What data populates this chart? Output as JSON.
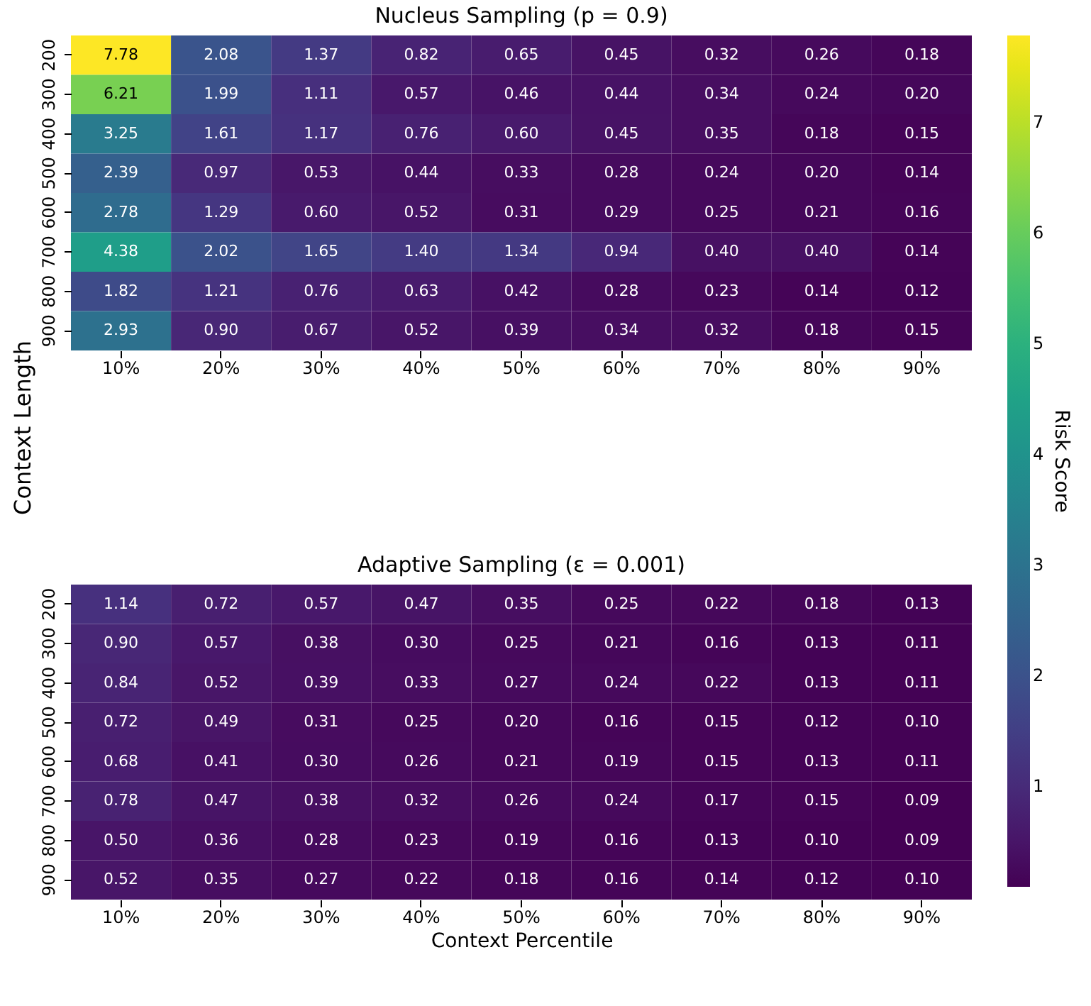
{
  "chart_data": [
    {
      "type": "heatmap",
      "title": "Nucleus Sampling (p = 0.9)",
      "ylabel": "Context Length",
      "clabel": "Risk Score",
      "clim": [
        0.09,
        7.78
      ],
      "cticks": [
        1,
        2,
        3,
        4,
        5,
        6,
        7
      ],
      "data_labels": true,
      "categories": [
        "10%",
        "20%",
        "30%",
        "40%",
        "50%",
        "60%",
        "70%",
        "80%",
        "90%"
      ],
      "y_categories": [
        "200",
        "300",
        "400",
        "500",
        "600",
        "700",
        "800",
        "900"
      ],
      "cells": [
        [
          7.78,
          2.08,
          1.37,
          0.82,
          0.65,
          0.45,
          0.32,
          0.26,
          0.18
        ],
        [
          6.21,
          1.99,
          1.11,
          0.57,
          0.46,
          0.44,
          0.34,
          0.24,
          0.2
        ],
        [
          3.25,
          1.61,
          1.17,
          0.76,
          0.6,
          0.45,
          0.35,
          0.18,
          0.15
        ],
        [
          2.39,
          0.97,
          0.53,
          0.44,
          0.33,
          0.28,
          0.24,
          0.2,
          0.14
        ],
        [
          2.78,
          1.29,
          0.6,
          0.52,
          0.31,
          0.29,
          0.25,
          0.21,
          0.16
        ],
        [
          4.38,
          2.02,
          1.65,
          1.4,
          1.34,
          0.94,
          0.4,
          0.4,
          0.14
        ],
        [
          1.82,
          1.21,
          0.76,
          0.63,
          0.42,
          0.28,
          0.23,
          0.14,
          0.12
        ],
        [
          2.93,
          0.9,
          0.67,
          0.52,
          0.39,
          0.34,
          0.32,
          0.18,
          0.15
        ]
      ],
      "cell_labels": [
        [
          "7.78",
          "2.08",
          "1.37",
          "0.82",
          "0.65",
          "0.45",
          "0.32",
          "0.26",
          "0.18"
        ],
        [
          "6.21",
          "1.99",
          "1.11",
          "0.57",
          "0.46",
          "0.44",
          "0.34",
          "0.24",
          "0.20"
        ],
        [
          "3.25",
          "1.61",
          "1.17",
          "0.76",
          "0.60",
          "0.45",
          "0.35",
          "0.18",
          "0.15"
        ],
        [
          "2.39",
          "0.97",
          "0.53",
          "0.44",
          "0.33",
          "0.28",
          "0.24",
          "0.20",
          "0.14"
        ],
        [
          "2.78",
          "1.29",
          "0.60",
          "0.52",
          "0.31",
          "0.29",
          "0.25",
          "0.21",
          "0.16"
        ],
        [
          "4.38",
          "2.02",
          "1.65",
          "1.40",
          "1.34",
          "0.94",
          "0.40",
          "0.40",
          "0.14"
        ],
        [
          "1.82",
          "1.21",
          "0.76",
          "0.63",
          "0.42",
          "0.28",
          "0.23",
          "0.14",
          "0.12"
        ],
        [
          "2.93",
          "0.90",
          "0.67",
          "0.52",
          "0.39",
          "0.34",
          "0.32",
          "0.18",
          "0.15"
        ]
      ]
    },
    {
      "type": "heatmap",
      "title": "Adaptive Sampling (ε = 0.001)",
      "xlabel": "Context Percentile",
      "data_labels": true,
      "categories": [
        "10%",
        "20%",
        "30%",
        "40%",
        "50%",
        "60%",
        "70%",
        "80%",
        "90%"
      ],
      "y_categories": [
        "200",
        "300",
        "400",
        "500",
        "600",
        "700",
        "800",
        "900"
      ],
      "cells": [
        [
          1.14,
          0.72,
          0.57,
          0.47,
          0.35,
          0.25,
          0.22,
          0.18,
          0.13
        ],
        [
          0.9,
          0.57,
          0.38,
          0.3,
          0.25,
          0.21,
          0.16,
          0.13,
          0.11
        ],
        [
          0.84,
          0.52,
          0.39,
          0.33,
          0.27,
          0.24,
          0.22,
          0.13,
          0.11
        ],
        [
          0.72,
          0.49,
          0.31,
          0.25,
          0.2,
          0.16,
          0.15,
          0.12,
          0.1
        ],
        [
          0.68,
          0.41,
          0.3,
          0.26,
          0.21,
          0.19,
          0.15,
          0.13,
          0.11
        ],
        [
          0.78,
          0.47,
          0.38,
          0.32,
          0.26,
          0.24,
          0.17,
          0.15,
          0.09
        ],
        [
          0.5,
          0.36,
          0.28,
          0.23,
          0.19,
          0.16,
          0.13,
          0.1,
          0.09
        ],
        [
          0.52,
          0.35,
          0.27,
          0.22,
          0.18,
          0.16,
          0.14,
          0.12,
          0.1
        ]
      ],
      "cell_labels": [
        [
          "1.14",
          "0.72",
          "0.57",
          "0.47",
          "0.35",
          "0.25",
          "0.22",
          "0.18",
          "0.13"
        ],
        [
          "0.90",
          "0.57",
          "0.38",
          "0.30",
          "0.25",
          "0.21",
          "0.16",
          "0.13",
          "0.11"
        ],
        [
          "0.84",
          "0.52",
          "0.39",
          "0.33",
          "0.27",
          "0.24",
          "0.22",
          "0.13",
          "0.11"
        ],
        [
          "0.72",
          "0.49",
          "0.31",
          "0.25",
          "0.20",
          "0.16",
          "0.15",
          "0.12",
          "0.10"
        ],
        [
          "0.68",
          "0.41",
          "0.30",
          "0.26",
          "0.21",
          "0.19",
          "0.15",
          "0.13",
          "0.11"
        ],
        [
          "0.78",
          "0.47",
          "0.38",
          "0.32",
          "0.26",
          "0.24",
          "0.17",
          "0.15",
          "0.09"
        ],
        [
          "0.50",
          "0.36",
          "0.28",
          "0.23",
          "0.19",
          "0.16",
          "0.13",
          "0.10",
          "0.09"
        ],
        [
          "0.52",
          "0.35",
          "0.27",
          "0.22",
          "0.18",
          "0.16",
          "0.14",
          "0.12",
          "0.10"
        ]
      ]
    }
  ]
}
